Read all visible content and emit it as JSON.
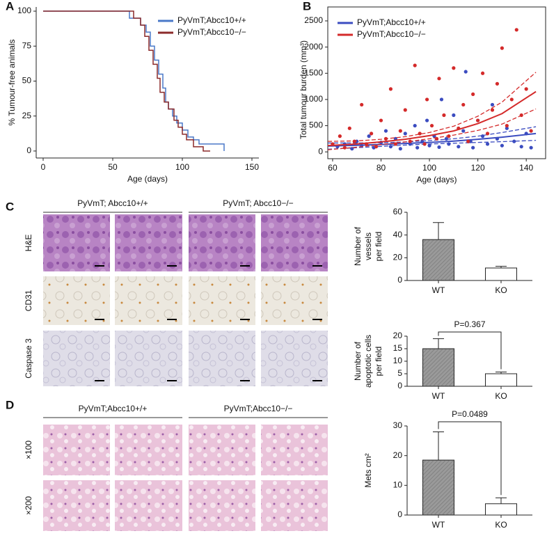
{
  "panels": [
    "A",
    "B",
    "C",
    "D"
  ],
  "images": {
    "C": {
      "columns": [
        "PyVmT; Abcc10+/+",
        "PyVmT; Abcc10−/−"
      ],
      "rows": [
        "H&E",
        "CD31",
        "Caspase 3"
      ]
    },
    "D": {
      "columns": [
        "PyVmT;Abcc10+/+",
        "PyVmT;Abcc10−/−"
      ],
      "rows": [
        "×100",
        "×200"
      ]
    }
  },
  "chart_data": [
    {
      "type": "line",
      "step": true,
      "xlabel": "Age (days)",
      "ylabel": "% Tumour-free animals",
      "xlim": [
        -5,
        155
      ],
      "xticks": [
        0,
        50,
        100,
        150
      ],
      "ylim": [
        -5,
        103
      ],
      "yticks": [
        0,
        25,
        50,
        75,
        100
      ],
      "series": [
        {
          "name": "PyVmT;Abcc10+/+",
          "color": "#4a78c8",
          "x": [
            0,
            58,
            62,
            70,
            74,
            77,
            80,
            83,
            86,
            88,
            90,
            93,
            96,
            100,
            104,
            108,
            112,
            120,
            130
          ],
          "values": [
            100,
            100,
            95,
            90,
            85,
            75,
            65,
            55,
            45,
            35,
            30,
            25,
            20,
            15,
            10,
            8,
            5,
            5,
            0
          ]
        },
        {
          "name": "PyVmT;Abcc10−/−",
          "color": "#8b2a2a",
          "x": [
            0,
            60,
            65,
            70,
            73,
            76,
            79,
            82,
            84,
            87,
            90,
            94,
            97,
            100,
            103,
            108,
            115,
            120
          ],
          "values": [
            100,
            100,
            95,
            90,
            82,
            72,
            62,
            52,
            42,
            35,
            30,
            22,
            17,
            12,
            8,
            3,
            0,
            0
          ]
        }
      ]
    },
    {
      "type": "scatter",
      "xlabel": "Age (days)",
      "ylabel": "Total tumour burden (mm³)",
      "xlim": [
        58,
        148
      ],
      "xticks": [
        60,
        80,
        100,
        120,
        140
      ],
      "ylim": [
        -130,
        2500
      ],
      "yticks": [
        0,
        500,
        1000,
        1500,
        2000,
        2500
      ],
      "series": [
        {
          "name": "PyVmT;Abcc10+/+",
          "color": "#3b4cc0",
          "x": [
            62,
            65,
            68,
            70,
            72,
            75,
            77,
            80,
            82,
            84,
            86,
            88,
            90,
            92,
            94,
            95,
            97,
            99,
            100,
            102,
            104,
            105,
            107,
            108,
            110,
            112,
            114,
            115,
            117,
            118,
            120,
            122,
            124,
            126,
            128,
            130,
            132,
            135,
            138,
            140,
            142
          ],
          "values": [
            100,
            150,
            60,
            200,
            120,
            300,
            80,
            180,
            400,
            100,
            250,
            60,
            350,
            150,
            500,
            80,
            200,
            600,
            120,
            300,
            90,
            1000,
            250,
            150,
            700,
            100,
            400,
            1530,
            200,
            80,
            600,
            300,
            150,
            900,
            250,
            120,
            450,
            200,
            100,
            350,
            80
          ],
          "fit": {
            "x": [
              58,
              70,
              80,
              90,
              100,
              110,
              120,
              130,
              144
            ],
            "values": [
              110,
              125,
              140,
              160,
              180,
              205,
              240,
              280,
              350
            ],
            "lower": [
              50,
              80,
              105,
              130,
              150,
              165,
              180,
              195,
              220
            ],
            "upper": [
              170,
              170,
              175,
              190,
              215,
              250,
              300,
              370,
              480
            ]
          }
        },
        {
          "name": "PyVmT;Abcc10−/−",
          "color": "#d42a2a",
          "x": [
            60,
            63,
            65,
            67,
            69,
            72,
            74,
            76,
            78,
            80,
            82,
            84,
            86,
            88,
            90,
            92,
            94,
            96,
            98,
            99,
            101,
            103,
            104,
            106,
            108,
            110,
            112,
            114,
            116,
            118,
            120,
            122,
            124,
            126,
            128,
            130,
            132,
            134,
            136,
            138,
            140,
            142
          ],
          "values": [
            150,
            300,
            80,
            450,
            200,
            900,
            150,
            350,
            100,
            600,
            250,
            1200,
            150,
            400,
            800,
            200,
            1650,
            350,
            150,
            1000,
            500,
            250,
            1400,
            700,
            300,
            1600,
            450,
            900,
            200,
            1100,
            600,
            1500,
            350,
            800,
            1300,
            1980,
            500,
            1000,
            2330,
            700,
            1200,
            400
          ],
          "fit": {
            "x": [
              58,
              70,
              80,
              90,
              100,
              110,
              120,
              130,
              144
            ],
            "values": [
              120,
              150,
              190,
              240,
              310,
              400,
              540,
              730,
              1150
            ],
            "lower": [
              40,
              90,
              140,
              190,
              250,
              320,
              410,
              530,
              820
            ],
            "upper": [
              200,
              210,
              240,
              290,
              370,
              490,
              680,
              950,
              1520
            ]
          }
        }
      ]
    },
    {
      "type": "bar",
      "ylabel": [
        "Number of",
        "vessels",
        "per field"
      ],
      "categories": [
        "WT",
        "KO"
      ],
      "values": [
        36,
        11
      ],
      "errors": [
        15,
        1.5
      ],
      "colors": [
        "#9a9a9a",
        "#ffffff"
      ],
      "ylim": [
        0,
        60
      ],
      "yticks": [
        0,
        20,
        40,
        60
      ]
    },
    {
      "type": "bar",
      "ylabel": [
        "Number of",
        "apoptotic cells",
        "per field"
      ],
      "categories": [
        "WT",
        "KO"
      ],
      "values": [
        15,
        5
      ],
      "errors": [
        4,
        0.7
      ],
      "colors": [
        "#9a9a9a",
        "#ffffff"
      ],
      "ylim": [
        0,
        20
      ],
      "yticks": [
        0,
        5,
        10,
        15,
        20
      ],
      "annotation": "P=0.367"
    },
    {
      "type": "bar",
      "ylabel": [
        "Mets cm²"
      ],
      "categories": [
        "WT",
        "KO"
      ],
      "values": [
        18.5,
        3.8
      ],
      "errors": [
        9.5,
        2
      ],
      "colors": [
        "#9a9a9a",
        "#ffffff"
      ],
      "ylim": [
        0,
        30
      ],
      "yticks": [
        0,
        10,
        20,
        30
      ],
      "annotation": "P=0.0489"
    }
  ]
}
